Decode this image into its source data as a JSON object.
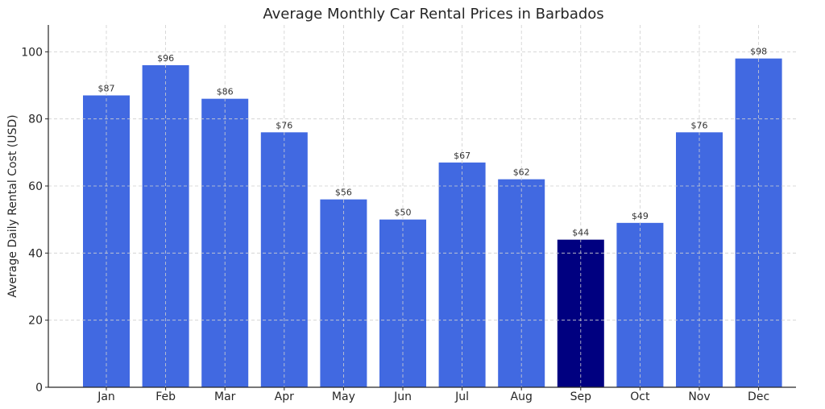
{
  "chart_data": {
    "type": "bar",
    "title": "Average Monthly Car Rental Prices in Barbados",
    "xlabel": "",
    "ylabel": "Average Daily Rental Cost (USD)",
    "categories": [
      "Jan",
      "Feb",
      "Mar",
      "Apr",
      "May",
      "Jun",
      "Jul",
      "Aug",
      "Sep",
      "Oct",
      "Nov",
      "Dec"
    ],
    "values": [
      87,
      96,
      86,
      76,
      56,
      50,
      67,
      62,
      44,
      49,
      76,
      98
    ],
    "data_labels": [
      "$87",
      "$96",
      "$86",
      "$76",
      "$56",
      "$50",
      "$67",
      "$62",
      "$44",
      "$49",
      "$76",
      "$98"
    ],
    "ylim": [
      0,
      108
    ],
    "yticks": [
      0,
      20,
      40,
      60,
      80,
      100
    ],
    "grid": true,
    "colors": {
      "default": "#4169E1",
      "highlight": "#000080"
    },
    "highlighted_category": "Sep"
  }
}
